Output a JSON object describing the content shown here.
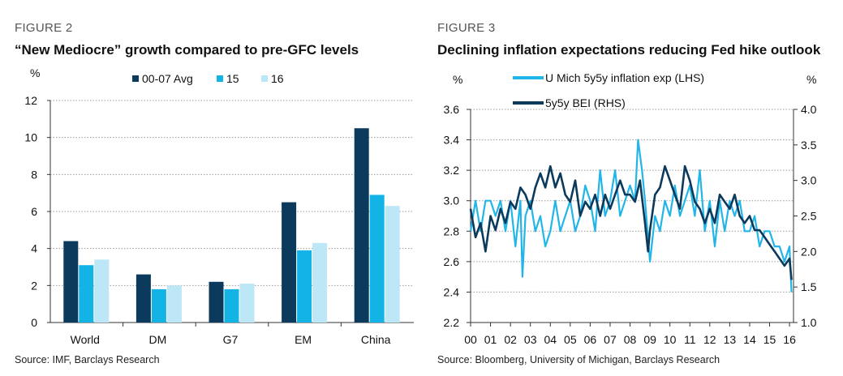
{
  "figures": [
    {
      "label": "FIGURE 2",
      "title": "“New Mediocre” growth compared to pre-GFC levels",
      "source": "Source: IMF, Barclays Research"
    },
    {
      "label": "FIGURE 3",
      "title": "Declining inflation expectations reducing Fed hike outlook",
      "source": "Source: Bloomberg, University of Michigan, Barclays Research"
    }
  ],
  "chart_data": [
    {
      "type": "bar",
      "ylabel": "%",
      "ylim": [
        0,
        12
      ],
      "yticks": [
        "0",
        "2",
        "4",
        "6",
        "8",
        "10",
        "12"
      ],
      "categories": [
        "World",
        "DM",
        "G7",
        "EM",
        "China"
      ],
      "grid": true,
      "legend_position": "top",
      "series": [
        {
          "name": "00-07 Avg",
          "color": "#0b3a5c",
          "values": [
            4.4,
            2.6,
            2.2,
            6.5,
            10.5
          ]
        },
        {
          "name": "15",
          "color": "#14b3e6",
          "values": [
            3.1,
            1.8,
            1.8,
            3.9,
            6.9
          ]
        },
        {
          "name": "16",
          "color": "#bde6f6",
          "values": [
            3.4,
            2.0,
            2.1,
            4.3,
            6.3
          ]
        }
      ]
    },
    {
      "type": "line",
      "ylabel_left": "%",
      "ylabel_right": "%",
      "ylim_left": [
        2.2,
        3.6
      ],
      "ylim_right": [
        1.0,
        4.0
      ],
      "yticks_left": [
        "2.2",
        "2.4",
        "2.6",
        "2.8",
        "3.0",
        "3.2",
        "3.4",
        "3.6"
      ],
      "yticks_right": [
        "1.0",
        "1.5",
        "2.0",
        "2.5",
        "3.0",
        "3.5",
        "4.0"
      ],
      "xticks": [
        "00",
        "01",
        "02",
        "03",
        "04",
        "05",
        "06",
        "07",
        "08",
        "09",
        "10",
        "11",
        "12",
        "13",
        "14",
        "15",
        "16"
      ],
      "xlim": [
        2000,
        2016.2
      ],
      "grid": true,
      "legend_position": "top",
      "series": [
        {
          "name": "U Mich 5y5y inflation exp (LHS)",
          "axis": "left",
          "color": "#22b6e8",
          "x": [
            2000.0,
            2000.25,
            2000.5,
            2000.75,
            2001.0,
            2001.25,
            2001.5,
            2001.75,
            2002.0,
            2002.25,
            2002.5,
            2002.6,
            2002.75,
            2003.0,
            2003.25,
            2003.5,
            2003.75,
            2004.0,
            2004.25,
            2004.5,
            2004.75,
            2005.0,
            2005.25,
            2005.5,
            2005.75,
            2006.0,
            2006.25,
            2006.5,
            2006.75,
            2007.0,
            2007.25,
            2007.5,
            2007.75,
            2008.0,
            2008.25,
            2008.4,
            2008.6,
            2008.75,
            2009.0,
            2009.25,
            2009.5,
            2009.75,
            2010.0,
            2010.25,
            2010.5,
            2010.75,
            2011.0,
            2011.25,
            2011.5,
            2011.75,
            2012.0,
            2012.25,
            2012.5,
            2012.75,
            2013.0,
            2013.25,
            2013.5,
            2013.75,
            2014.0,
            2014.25,
            2014.5,
            2014.75,
            2015.0,
            2015.25,
            2015.5,
            2015.75,
            2016.0,
            2016.1
          ],
          "y": [
            2.8,
            3.0,
            2.8,
            3.0,
            3.0,
            2.9,
            3.0,
            2.8,
            3.0,
            2.7,
            3.0,
            2.5,
            2.9,
            3.0,
            2.8,
            2.9,
            2.7,
            2.8,
            3.0,
            2.8,
            2.9,
            3.0,
            2.8,
            2.9,
            3.1,
            3.0,
            2.8,
            3.2,
            2.9,
            3.0,
            3.2,
            2.9,
            3.0,
            3.1,
            3.0,
            3.4,
            3.2,
            3.0,
            2.6,
            2.9,
            2.8,
            3.0,
            2.9,
            3.1,
            2.9,
            3.0,
            3.1,
            2.9,
            3.2,
            2.8,
            3.0,
            2.7,
            3.0,
            2.8,
            3.0,
            2.9,
            3.0,
            2.8,
            2.8,
            2.9,
            2.7,
            2.8,
            2.8,
            2.7,
            2.7,
            2.6,
            2.7,
            2.4
          ]
        },
        {
          "name": "5y5y BEI (RHS)",
          "axis": "right",
          "color": "#0b3a5c",
          "x": [
            2000.0,
            2000.25,
            2000.5,
            2000.75,
            2001.0,
            2001.25,
            2001.5,
            2001.75,
            2002.0,
            2002.25,
            2002.5,
            2002.75,
            2003.0,
            2003.25,
            2003.5,
            2003.75,
            2004.0,
            2004.25,
            2004.5,
            2004.75,
            2005.0,
            2005.25,
            2005.5,
            2005.75,
            2006.0,
            2006.25,
            2006.5,
            2006.75,
            2007.0,
            2007.25,
            2007.5,
            2007.75,
            2008.0,
            2008.25,
            2008.5,
            2008.75,
            2008.9,
            2009.0,
            2009.25,
            2009.5,
            2009.75,
            2010.0,
            2010.25,
            2010.5,
            2010.75,
            2011.0,
            2011.25,
            2011.5,
            2011.75,
            2012.0,
            2012.25,
            2012.5,
            2012.75,
            2013.0,
            2013.25,
            2013.5,
            2013.75,
            2014.0,
            2014.25,
            2014.5,
            2014.75,
            2015.0,
            2015.25,
            2015.5,
            2015.75,
            2016.0,
            2016.1
          ],
          "y": [
            2.6,
            2.2,
            2.4,
            2.0,
            2.5,
            2.3,
            2.6,
            2.4,
            2.7,
            2.6,
            2.9,
            2.8,
            2.6,
            2.9,
            3.1,
            2.9,
            3.2,
            2.9,
            3.1,
            2.8,
            2.7,
            3.0,
            2.5,
            2.7,
            2.6,
            2.8,
            2.5,
            2.8,
            2.6,
            2.8,
            3.0,
            2.8,
            2.8,
            2.7,
            3.0,
            2.4,
            2.0,
            2.3,
            2.8,
            2.9,
            3.2,
            3.0,
            2.8,
            2.6,
            3.2,
            3.0,
            2.7,
            2.6,
            2.4,
            2.6,
            2.4,
            2.8,
            2.7,
            2.6,
            2.8,
            2.5,
            2.4,
            2.5,
            2.3,
            2.3,
            2.2,
            2.1,
            2.0,
            1.9,
            1.8,
            1.9,
            1.6
          ]
        }
      ]
    }
  ]
}
